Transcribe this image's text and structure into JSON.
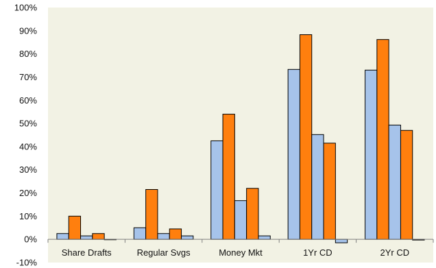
{
  "chart_data": {
    "type": "bar",
    "title": "",
    "xlabel": "",
    "ylabel": "",
    "ylim": [
      -10,
      100
    ],
    "yticks": [
      -10,
      0,
      10,
      20,
      30,
      40,
      50,
      60,
      70,
      80,
      90,
      100
    ],
    "ytick_labels": [
      "-10%",
      "0%",
      "10%",
      "20%",
      "30%",
      "40%",
      "50%",
      "60%",
      "70%",
      "80%",
      "90%",
      "100%"
    ],
    "grid": false,
    "legend": "none",
    "categories": [
      "Share Drafts",
      "Regular Svgs",
      "Money Mkt",
      "1Yr CD",
      "2Yr CD"
    ],
    "series": [
      {
        "values": [
          2.5,
          5.0,
          42.5,
          73.3,
          73.0
        ],
        "color": "#a6c3ea"
      },
      {
        "values": [
          10.0,
          21.5,
          54.0,
          88.3,
          86.2
        ],
        "color": "#ff7f0e"
      },
      {
        "values": [
          1.5,
          2.5,
          16.7,
          45.2,
          49.3
        ],
        "color": "#a6c3ea"
      },
      {
        "values": [
          2.5,
          4.5,
          22.0,
          41.5,
          47.0
        ],
        "color": "#ff7f0e"
      },
      {
        "values": [
          0.0,
          1.5,
          1.5,
          -1.5,
          -0.3
        ],
        "color": "#a6c3ea"
      }
    ],
    "plot_background": "#f2f2e4"
  }
}
